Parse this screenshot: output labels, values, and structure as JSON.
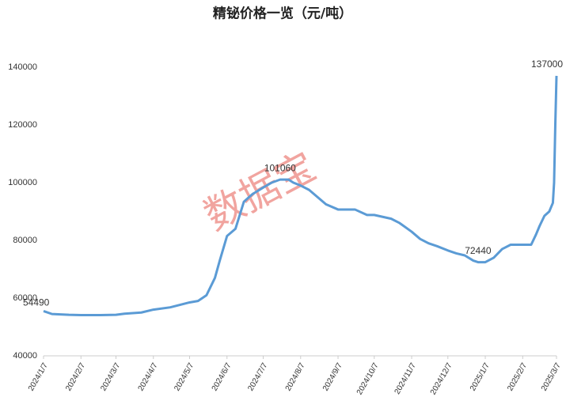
{
  "chart_data": {
    "type": "line",
    "title": "精铋价格一览（元/吨）",
    "watermark": "数据宝",
    "x": [
      "2024/1/7",
      "2024/1/14",
      "2024/1/28",
      "2024/2/7",
      "2024/2/21",
      "2024/3/7",
      "2024/3/14",
      "2024/3/28",
      "2024/4/7",
      "2024/4/21",
      "2024/5/7",
      "2024/5/14",
      "2024/5/21",
      "2024/5/28",
      "2024/6/1",
      "2024/6/7",
      "2024/6/14",
      "2024/6/21",
      "2024/6/28",
      "2024/7/7",
      "2024/7/14",
      "2024/7/21",
      "2024/7/28",
      "2024/8/1",
      "2024/8/7",
      "2024/8/14",
      "2024/8/21",
      "2024/8/28",
      "2024/9/7",
      "2024/9/21",
      "2024/10/1",
      "2024/10/7",
      "2024/10/21",
      "2024/10/28",
      "2024/11/7",
      "2024/11/14",
      "2024/11/21",
      "2024/11/28",
      "2024/12/7",
      "2024/12/14",
      "2024/12/21",
      "2024/12/28",
      "2025/1/1",
      "2025/1/7",
      "2025/1/14",
      "2025/1/21",
      "2025/1/28",
      "2025/2/7",
      "2025/2/14",
      "2025/2/18",
      "2025/2/21",
      "2025/2/25",
      "2025/3/1",
      "2025/3/4",
      "2025/3/5",
      "2025/3/6",
      "2025/3/7"
    ],
    "values": [
      55500,
      54490,
      54200,
      54100,
      54100,
      54200,
      54600,
      55000,
      56000,
      56800,
      58500,
      59000,
      61000,
      67000,
      73000,
      81500,
      84000,
      93400,
      96000,
      98300,
      100000,
      101060,
      101060,
      100000,
      99000,
      97500,
      95000,
      92500,
      90700,
      90700,
      88800,
      88800,
      87500,
      86000,
      83000,
      80500,
      79000,
      78000,
      76500,
      75500,
      74800,
      73000,
      72440,
      72440,
      74000,
      77000,
      78500,
      78500,
      78500,
      82000,
      85000,
      88500,
      90000,
      93000,
      100000,
      120000,
      137000
    ],
    "color": "#5b9bd5",
    "annotations": [
      {
        "x": "2024/1/14",
        "value": 54490
      },
      {
        "x": "2024/7/21",
        "value": 101060
      },
      {
        "x": "2025/1/1",
        "value": 72440
      },
      {
        "x": "2025/3/7",
        "value": 137000
      }
    ],
    "xlim": [
      "2024/1/7",
      "2025/3/7"
    ],
    "xticks": [
      "2024/1/7",
      "2024/2/7",
      "2024/3/7",
      "2024/4/7",
      "2024/5/7",
      "2024/6/7",
      "2024/7/7",
      "2024/8/7",
      "2024/9/7",
      "2024/10/7",
      "2024/11/7",
      "2024/12/7",
      "2025/1/7",
      "2025/2/7",
      "2025/3/7"
    ],
    "ylim": [
      40000,
      150000
    ],
    "yticks": [
      40000,
      60000,
      80000,
      100000,
      120000,
      140000
    ],
    "grid": false
  }
}
